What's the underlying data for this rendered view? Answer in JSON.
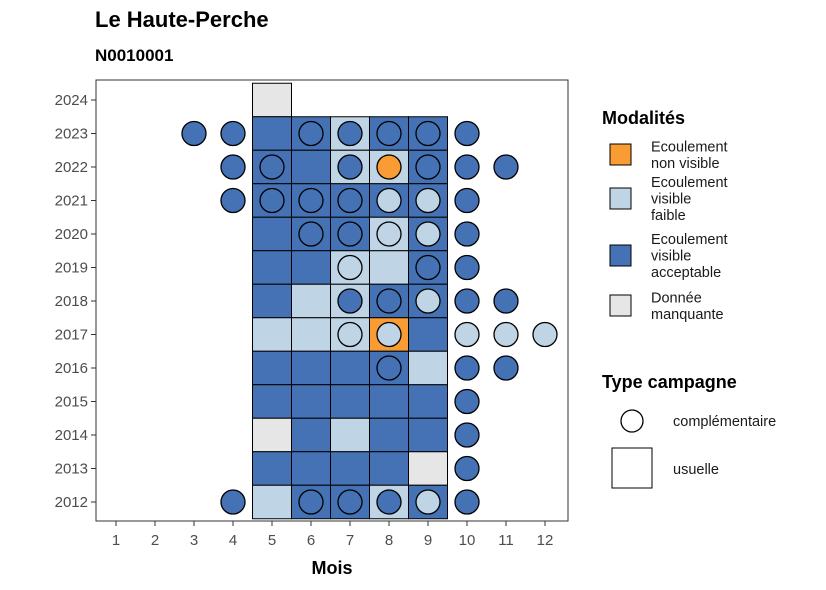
{
  "header": {
    "title": "Le Haute-Perche",
    "subtitle": "N0010001"
  },
  "chart_data": {
    "type": "heatmap",
    "xlabel": "Mois",
    "ylabel": "",
    "x_ticks": [
      1,
      2,
      3,
      4,
      5,
      6,
      7,
      8,
      9,
      10,
      11,
      12
    ],
    "y_ticks": [
      2012,
      2013,
      2014,
      2015,
      2016,
      2017,
      2018,
      2019,
      2020,
      2021,
      2022,
      2023,
      2024
    ],
    "xlim": [
      0.5,
      12.5
    ],
    "ylim": [
      2011.5,
      2024.5
    ],
    "grid": false,
    "legend_position": "right",
    "colors": {
      "non_visible": "#f89c33",
      "faible": "#bfd5e6",
      "acceptable": "#4572b5",
      "manquante": "#e6e6e6"
    },
    "legend": {
      "modalites_title": "Modalités",
      "modalites": [
        {
          "key": "non_visible",
          "lines": [
            "Ecoulement",
            "non visible"
          ]
        },
        {
          "key": "faible",
          "lines": [
            "Ecoulement",
            "visible",
            "faible"
          ]
        },
        {
          "key": "acceptable",
          "lines": [
            "Ecoulement",
            "visible",
            "acceptable"
          ]
        },
        {
          "key": "manquante",
          "lines": [
            "Donnée",
            "manquante"
          ]
        }
      ],
      "campagne_title": "Type campagne",
      "campagnes": [
        {
          "shape": "circle",
          "label": "complémentaire"
        },
        {
          "shape": "square",
          "label": "usuelle"
        }
      ]
    },
    "usuelle": [
      [
        2024,
        [
          [
            5,
            "manquante"
          ]
        ]
      ],
      [
        2023,
        [
          [
            5,
            "acceptable"
          ],
          [
            6,
            "acceptable"
          ],
          [
            7,
            "faible"
          ],
          [
            8,
            "acceptable"
          ],
          [
            9,
            "acceptable"
          ]
        ]
      ],
      [
        2022,
        [
          [
            5,
            "acceptable"
          ],
          [
            6,
            "acceptable"
          ],
          [
            7,
            "faible"
          ],
          [
            8,
            "faible"
          ],
          [
            9,
            "acceptable"
          ]
        ]
      ],
      [
        2021,
        [
          [
            5,
            "acceptable"
          ],
          [
            6,
            "acceptable"
          ],
          [
            7,
            "acceptable"
          ],
          [
            8,
            "acceptable"
          ],
          [
            9,
            "acceptable"
          ]
        ]
      ],
      [
        2020,
        [
          [
            5,
            "acceptable"
          ],
          [
            6,
            "acceptable"
          ],
          [
            7,
            "acceptable"
          ],
          [
            8,
            "faible"
          ],
          [
            9,
            "acceptable"
          ]
        ]
      ],
      [
        2019,
        [
          [
            5,
            "acceptable"
          ],
          [
            6,
            "acceptable"
          ],
          [
            7,
            "faible"
          ],
          [
            8,
            "faible"
          ],
          [
            9,
            "acceptable"
          ]
        ]
      ],
      [
        2018,
        [
          [
            5,
            "acceptable"
          ],
          [
            6,
            "faible"
          ],
          [
            7,
            "faible"
          ],
          [
            8,
            "acceptable"
          ],
          [
            9,
            "acceptable"
          ]
        ]
      ],
      [
        2017,
        [
          [
            5,
            "faible"
          ],
          [
            6,
            "faible"
          ],
          [
            7,
            "faible"
          ],
          [
            8,
            "non_visible"
          ],
          [
            9,
            "acceptable"
          ]
        ]
      ],
      [
        2016,
        [
          [
            5,
            "acceptable"
          ],
          [
            6,
            "acceptable"
          ],
          [
            7,
            "acceptable"
          ],
          [
            8,
            "acceptable"
          ],
          [
            9,
            "faible"
          ]
        ]
      ],
      [
        2015,
        [
          [
            5,
            "acceptable"
          ],
          [
            6,
            "acceptable"
          ],
          [
            7,
            "acceptable"
          ],
          [
            8,
            "acceptable"
          ],
          [
            9,
            "acceptable"
          ]
        ]
      ],
      [
        2014,
        [
          [
            5,
            "manquante"
          ],
          [
            6,
            "acceptable"
          ],
          [
            7,
            "faible"
          ],
          [
            8,
            "acceptable"
          ],
          [
            9,
            "acceptable"
          ]
        ]
      ],
      [
        2013,
        [
          [
            5,
            "acceptable"
          ],
          [
            6,
            "acceptable"
          ],
          [
            7,
            "acceptable"
          ],
          [
            8,
            "acceptable"
          ],
          [
            9,
            "manquante"
          ]
        ]
      ],
      [
        2012,
        [
          [
            5,
            "faible"
          ],
          [
            6,
            "acceptable"
          ],
          [
            7,
            "acceptable"
          ],
          [
            8,
            "faible"
          ],
          [
            9,
            "acceptable"
          ]
        ]
      ]
    ],
    "complementaire": [
      [
        2023,
        [
          [
            3,
            "acceptable"
          ],
          [
            4,
            "acceptable"
          ],
          [
            6,
            "acceptable"
          ],
          [
            7,
            "acceptable"
          ],
          [
            8,
            "acceptable"
          ],
          [
            9,
            "acceptable"
          ],
          [
            10,
            "acceptable"
          ]
        ]
      ],
      [
        2022,
        [
          [
            4,
            "acceptable"
          ],
          [
            5,
            "acceptable"
          ],
          [
            7,
            "acceptable"
          ],
          [
            8,
            "non_visible"
          ],
          [
            9,
            "acceptable"
          ],
          [
            10,
            "acceptable"
          ],
          [
            11,
            "acceptable"
          ]
        ]
      ],
      [
        2021,
        [
          [
            4,
            "acceptable"
          ],
          [
            5,
            "acceptable"
          ],
          [
            6,
            "acceptable"
          ],
          [
            7,
            "acceptable"
          ],
          [
            8,
            "faible"
          ],
          [
            9,
            "faible"
          ],
          [
            10,
            "acceptable"
          ]
        ]
      ],
      [
        2020,
        [
          [
            6,
            "acceptable"
          ],
          [
            7,
            "acceptable"
          ],
          [
            8,
            "faible"
          ],
          [
            9,
            "faible"
          ],
          [
            10,
            "acceptable"
          ]
        ]
      ],
      [
        2019,
        [
          [
            7,
            "faible"
          ],
          [
            9,
            "acceptable"
          ],
          [
            10,
            "acceptable"
          ]
        ]
      ],
      [
        2018,
        [
          [
            7,
            "acceptable"
          ],
          [
            8,
            "acceptable"
          ],
          [
            9,
            "faible"
          ],
          [
            10,
            "acceptable"
          ],
          [
            11,
            "acceptable"
          ]
        ]
      ],
      [
        2017,
        [
          [
            7,
            "faible"
          ],
          [
            8,
            "faible"
          ],
          [
            10,
            "faible"
          ],
          [
            11,
            "faible"
          ],
          [
            12,
            "faible"
          ]
        ]
      ],
      [
        2016,
        [
          [
            8,
            "acceptable"
          ],
          [
            10,
            "acceptable"
          ],
          [
            11,
            "acceptable"
          ]
        ]
      ],
      [
        2015,
        [
          [
            10,
            "acceptable"
          ]
        ]
      ],
      [
        2014,
        [
          [
            10,
            "acceptable"
          ]
        ]
      ],
      [
        2013,
        [
          [
            10,
            "acceptable"
          ]
        ]
      ],
      [
        2012,
        [
          [
            4,
            "acceptable"
          ],
          [
            6,
            "acceptable"
          ],
          [
            7,
            "acceptable"
          ],
          [
            8,
            "acceptable"
          ],
          [
            9,
            "faible"
          ],
          [
            10,
            "acceptable"
          ]
        ]
      ]
    ]
  }
}
